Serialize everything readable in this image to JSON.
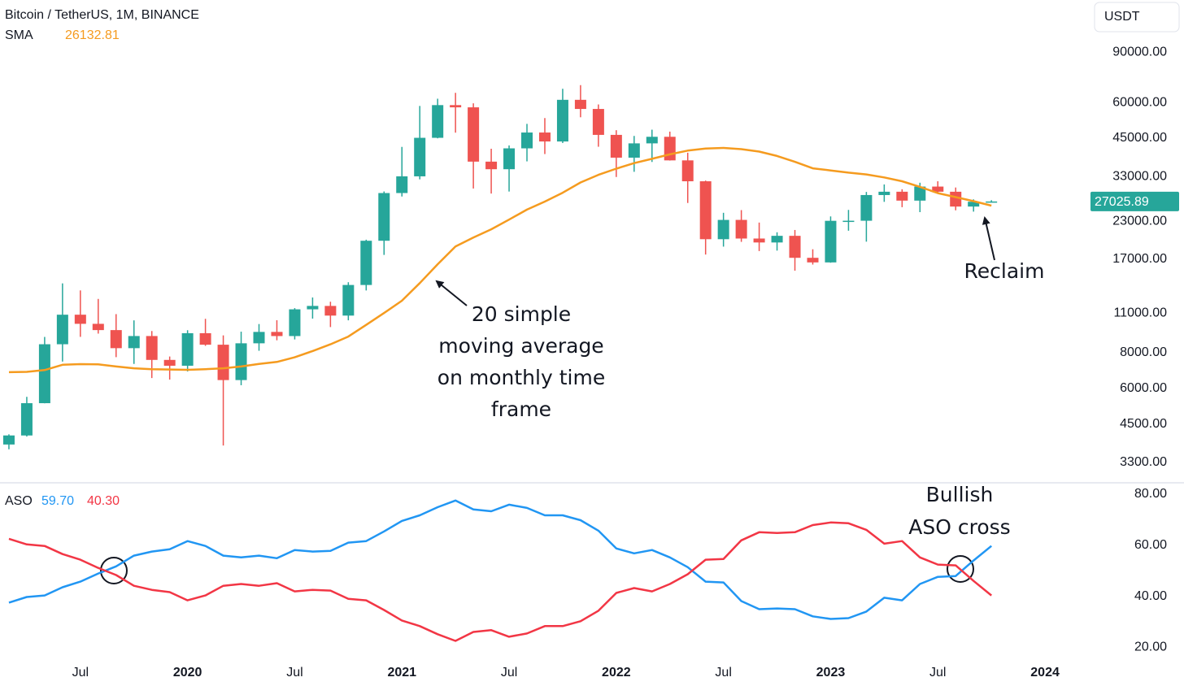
{
  "chart_data": [
    {
      "type": "candlestick",
      "title": "Bitcoin / TetherUS, 1M, BINANCE",
      "unit": "USDT",
      "x": [
        "2019-03",
        "2019-04",
        "2019-05",
        "2019-06",
        "2019-07",
        "2019-08",
        "2019-09",
        "2019-10",
        "2019-11",
        "2019-12",
        "2020-01",
        "2020-02",
        "2020-03",
        "2020-04",
        "2020-05",
        "2020-06",
        "2020-07",
        "2020-08",
        "2020-09",
        "2020-10",
        "2020-11",
        "2020-12",
        "2021-01",
        "2021-02",
        "2021-03",
        "2021-04",
        "2021-05",
        "2021-06",
        "2021-07",
        "2021-08",
        "2021-09",
        "2021-10",
        "2021-11",
        "2021-12",
        "2022-01",
        "2022-02",
        "2022-03",
        "2022-04",
        "2022-05",
        "2022-06",
        "2022-07",
        "2022-08",
        "2022-09",
        "2022-10",
        "2022-11",
        "2022-12",
        "2023-01",
        "2023-02",
        "2023-03",
        "2023-04",
        "2023-05",
        "2023-06",
        "2023-07",
        "2023-08",
        "2023-09",
        "2023-10"
      ],
      "open": [
        3814,
        4102,
        5321,
        8555,
        10854,
        10085,
        9588,
        8289,
        9140,
        7541,
        7195,
        9352,
        8523,
        6410,
        8620,
        9448,
        9138,
        11335,
        11649,
        10776,
        13791,
        19695,
        28923,
        33092,
        45134,
        58739,
        57697,
        37253,
        35045,
        41461,
        47100,
        43820,
        61300,
        56950,
        46217,
        38466,
        43160,
        45510,
        37631,
        31801,
        19942,
        23297,
        20049,
        19423,
        20490,
        17165,
        16541,
        23125,
        23141,
        28465,
        29233,
        27211,
        30472,
        29232,
        25940,
        26962
      ],
      "high": [
        4140,
        5600,
        9074,
        13970,
        13200,
        12325,
        10905,
        10370,
        9516,
        7750,
        9578,
        10500,
        9188,
        9467,
        10067,
        10380,
        11444,
        12468,
        12050,
        14100,
        19863,
        29300,
        41950,
        58352,
        61844,
        64854,
        59592,
        41330,
        42448,
        50500,
        52920,
        67000,
        69000,
        59053,
        47990,
        45821,
        48189,
        47444,
        40023,
        31982,
        24668,
        25211,
        22800,
        21085,
        21480,
        18388,
        23960,
        25250,
        29184,
        31000,
        29820,
        31431,
        31804,
        30244,
        27488,
        27300
      ],
      "low": [
        3670,
        4067,
        5316,
        7440,
        9080,
        9320,
        7710,
        7300,
        6515,
        6435,
        6871,
        8445,
        3782,
        6150,
        8117,
        8833,
        8893,
        10518,
        9825,
        10374,
        13195,
        17572,
        28130,
        32296,
        44950,
        47044,
        30000,
        28805,
        29278,
        37332,
        39600,
        43283,
        53256,
        42000,
        32917,
        34322,
        37155,
        37578,
        26700,
        17622,
        18781,
        19520,
        18125,
        18190,
        15476,
        16256,
        16499,
        21351,
        19549,
        26942,
        25811,
        24800,
        28861,
        25166,
        24901,
        26800
      ],
      "close": [
        4103,
        5321,
        8555,
        10854,
        10085,
        9588,
        8289,
        9140,
        7541,
        7195,
        9352,
        8523,
        6410,
        8620,
        9448,
        9138,
        11335,
        11649,
        10776,
        13791,
        19695,
        28923,
        33092,
        45135,
        58740,
        57694,
        37253,
        35045,
        41461,
        47100,
        43824,
        61299,
        56950,
        46216,
        38466,
        43160,
        45510,
        37630,
        31801,
        19942,
        23293,
        20050,
        19423,
        20491,
        17164,
        16542,
        23125,
        23141,
        28465,
        29233,
        27211,
        30472,
        29232,
        25941,
        26962,
        27025.89
      ],
      "up_color": "#26a69a",
      "down_color": "#ef5350",
      "log_scale": true,
      "ylim": [
        2820,
        137000
      ],
      "xlim": [
        "2019-02",
        "2024-03"
      ],
      "yticks": [
        {
          "value": 90000,
          "label": "90000.00"
        },
        {
          "value": 60000,
          "label": "60000.00"
        },
        {
          "value": 45000,
          "label": "45000.00"
        },
        {
          "value": 33000,
          "label": "33000.00"
        },
        {
          "value": 23000,
          "label": "23000.00"
        },
        {
          "value": 17000,
          "label": "17000.00"
        },
        {
          "value": 11000,
          "label": "11000.00"
        },
        {
          "value": 8000,
          "label": "8000.00"
        },
        {
          "value": 6000,
          "label": "6000.00"
        },
        {
          "value": 4500,
          "label": "4500.00"
        },
        {
          "value": 3300,
          "label": "3300.00"
        }
      ],
      "series": [
        {
          "name": "SMA",
          "color": "#f59b1f",
          "values": [
            6830,
            6850,
            6950,
            7250,
            7290,
            7280,
            7150,
            7050,
            7000,
            6980,
            6960,
            7000,
            7050,
            7150,
            7300,
            7420,
            7700,
            8100,
            8550,
            9100,
            10000,
            11000,
            12150,
            14000,
            16300,
            18800,
            20200,
            21600,
            23350,
            25300,
            27000,
            29000,
            31500,
            33500,
            35200,
            36800,
            38100,
            39500,
            40700,
            41400,
            41600,
            41200,
            40400,
            39000,
            37200,
            35300,
            34700,
            34100,
            33600,
            32800,
            31800,
            30400,
            28900,
            28000,
            27100,
            26132.81
          ]
        }
      ],
      "annotations": [
        {
          "lines": [
            "20 simple",
            "moving average",
            "on monthly time",
            "frame"
          ]
        },
        {
          "lines": [
            "Reclaim"
          ]
        }
      ]
    },
    {
      "type": "line",
      "title": "ASO",
      "x": [
        "2019-03",
        "2019-04",
        "2019-05",
        "2019-06",
        "2019-07",
        "2019-08",
        "2019-09",
        "2019-10",
        "2019-11",
        "2019-12",
        "2020-01",
        "2020-02",
        "2020-03",
        "2020-04",
        "2020-05",
        "2020-06",
        "2020-07",
        "2020-08",
        "2020-09",
        "2020-10",
        "2020-11",
        "2020-12",
        "2021-01",
        "2021-02",
        "2021-03",
        "2021-04",
        "2021-05",
        "2021-06",
        "2021-07",
        "2021-08",
        "2021-09",
        "2021-10",
        "2021-11",
        "2021-12",
        "2022-01",
        "2022-02",
        "2022-03",
        "2022-04",
        "2022-05",
        "2022-06",
        "2022-07",
        "2022-08",
        "2022-09",
        "2022-10",
        "2022-11",
        "2022-12",
        "2023-01",
        "2023-02",
        "2023-03",
        "2023-04",
        "2023-05",
        "2023-06",
        "2023-07",
        "2023-08",
        "2023-09",
        "2023-10"
      ],
      "xlim": [
        "2019-02",
        "2024-03"
      ],
      "xticks": [
        {
          "value": "2019-07",
          "label": "Jul"
        },
        {
          "value": "2020-01",
          "label": "2020"
        },
        {
          "value": "2020-07",
          "label": "Jul"
        },
        {
          "value": "2021-01",
          "label": "2021"
        },
        {
          "value": "2021-07",
          "label": "Jul"
        },
        {
          "value": "2022-01",
          "label": "2022"
        },
        {
          "value": "2022-07",
          "label": "Jul"
        },
        {
          "value": "2023-01",
          "label": "2023"
        },
        {
          "value": "2023-07",
          "label": "Jul"
        },
        {
          "value": "2024-01",
          "label": "2024"
        }
      ],
      "ylim": [
        15,
        83.5
      ],
      "yticks": [
        {
          "value": 80,
          "label": "80.00"
        },
        {
          "value": 60,
          "label": "60.00"
        },
        {
          "value": 40,
          "label": "40.00"
        },
        {
          "value": 20,
          "label": "20.00"
        }
      ],
      "series": [
        {
          "color": "#2196f3",
          "values": [
            37.5,
            39.7,
            40.3,
            43.5,
            45.7,
            48.9,
            51.7,
            55.9,
            57.5,
            58.4,
            61.6,
            59.7,
            55.9,
            55.2,
            55.9,
            54.9,
            58.1,
            57.5,
            57.8,
            61.0,
            61.6,
            65.4,
            69.5,
            71.7,
            74.9,
            77.5,
            74.0,
            73.3,
            75.9,
            74.6,
            71.7,
            71.7,
            69.8,
            65.7,
            58.7,
            56.8,
            58.1,
            55.2,
            51.4,
            45.7,
            45.4,
            38.1,
            34.9,
            35.2,
            34.9,
            32.1,
            31.1,
            31.4,
            34.0,
            39.4,
            38.4,
            44.8,
            47.6,
            47.9,
            54.0,
            59.7
          ],
          "value_labels": [
            null,
            null,
            null,
            null,
            null,
            null,
            null,
            null,
            null,
            null,
            null,
            null,
            null,
            null,
            null,
            null,
            null,
            null,
            null,
            null,
            null,
            null,
            null,
            null,
            null,
            null,
            null,
            null,
            null,
            null,
            null,
            null,
            null,
            null,
            null,
            null,
            null,
            null,
            null,
            null,
            null,
            null,
            null,
            null,
            null,
            null,
            null,
            null,
            null,
            null,
            null,
            null,
            null,
            null,
            null,
            "59.70"
          ]
        },
        {
          "color": "#f23645",
          "values": [
            62.5,
            60.3,
            59.7,
            56.5,
            54.3,
            51.1,
            48.3,
            44.1,
            42.5,
            41.6,
            38.4,
            40.3,
            44.1,
            44.8,
            44.1,
            45.1,
            41.9,
            42.5,
            42.2,
            39.0,
            38.4,
            34.6,
            30.5,
            28.3,
            25.1,
            22.5,
            26.0,
            26.7,
            24.1,
            25.4,
            28.3,
            28.3,
            30.2,
            34.3,
            41.3,
            43.2,
            41.9,
            44.8,
            48.6,
            54.3,
            54.6,
            61.9,
            65.1,
            64.8,
            65.1,
            67.9,
            68.9,
            68.6,
            66.0,
            60.6,
            61.6,
            55.2,
            52.4,
            52.1,
            46.0,
            40.3
          ],
          "value_labels": [
            null,
            null,
            null,
            null,
            null,
            null,
            null,
            null,
            null,
            null,
            null,
            null,
            null,
            null,
            null,
            null,
            null,
            null,
            null,
            null,
            null,
            null,
            null,
            null,
            null,
            null,
            null,
            null,
            null,
            null,
            null,
            null,
            null,
            null,
            null,
            null,
            null,
            null,
            null,
            null,
            null,
            null,
            null,
            null,
            null,
            null,
            null,
            null,
            null,
            null,
            null,
            null,
            null,
            null,
            null,
            "40.30"
          ]
        }
      ],
      "annotations": [
        {
          "lines": [
            "Bullish",
            "ASO cross"
          ]
        }
      ]
    }
  ]
}
